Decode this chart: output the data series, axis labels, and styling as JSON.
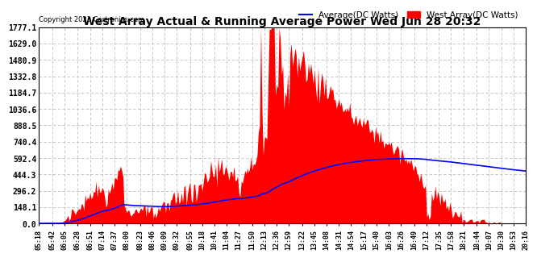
{
  "title": "West Array Actual & Running Average Power Wed Jun 28 20:32",
  "copyright": "Copyright 2023 Cartronics.com",
  "legend_avg": "Average(DC Watts)",
  "legend_west": "West Array(DC Watts)",
  "ylabel_ticks": [
    0.0,
    148.1,
    296.2,
    444.3,
    592.4,
    740.4,
    888.5,
    1036.6,
    1184.7,
    1332.8,
    1480.9,
    1629.0,
    1777.1
  ],
  "ymax": 1777.1,
  "ymin": 0.0,
  "background_color": "#ffffff",
  "grid_color": "#bbbbbb",
  "fill_color": "#ff0000",
  "line_color": "#0000ff",
  "title_color": "#000000",
  "copyright_color": "#000000",
  "x_labels": [
    "05:18",
    "05:42",
    "06:05",
    "06:28",
    "06:51",
    "07:14",
    "07:37",
    "08:00",
    "08:23",
    "08:46",
    "09:09",
    "09:32",
    "09:55",
    "10:18",
    "10:41",
    "11:04",
    "11:27",
    "11:50",
    "12:13",
    "12:36",
    "12:59",
    "13:22",
    "13:45",
    "14:08",
    "14:31",
    "14:54",
    "15:17",
    "15:40",
    "16:03",
    "16:26",
    "16:49",
    "17:12",
    "17:35",
    "17:58",
    "18:21",
    "18:44",
    "19:07",
    "19:30",
    "19:53",
    "20:16"
  ]
}
